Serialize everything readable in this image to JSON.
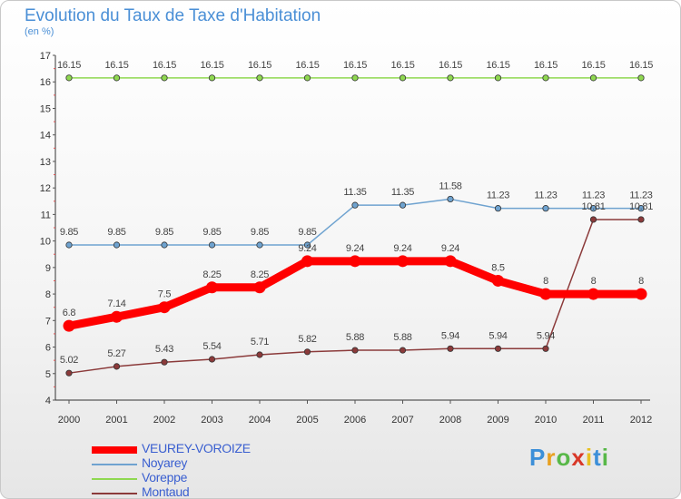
{
  "title": "Evolution du Taux de Taxe d'Habitation",
  "unit": "(en %)",
  "logo": {
    "text": "Proxiti",
    "letters": [
      "P",
      "r",
      "o",
      "x",
      "i",
      "t",
      "i"
    ]
  },
  "chart_data": {
    "type": "line",
    "categories": [
      "2000",
      "2001",
      "2002",
      "2003",
      "2004",
      "2005",
      "2006",
      "2007",
      "2008",
      "2009",
      "2010",
      "2011",
      "2012"
    ],
    "ylim": [
      4,
      17
    ],
    "yticks": [
      "4",
      "5",
      "6",
      "7",
      "8",
      "9",
      "10",
      "11",
      "12",
      "13",
      "14",
      "15",
      "16",
      "17"
    ],
    "grid": false,
    "legend_position": "bottom-left",
    "series": [
      {
        "name": "VEUREY-VOROIZE",
        "color": "#ff0000",
        "values": [
          6.8,
          7.14,
          7.5,
          8.25,
          8.25,
          9.24,
          9.24,
          9.24,
          9.24,
          8.5,
          8,
          8,
          8
        ],
        "labels": [
          "6.8",
          "7.14",
          "7.5",
          "8.25",
          "8.25",
          "9.24",
          "9.24",
          "9.24",
          "9.24",
          "8.5",
          "8",
          "8",
          "8"
        ]
      },
      {
        "name": "Noyarey",
        "color": "#6fa3d0",
        "values": [
          9.85,
          9.85,
          9.85,
          9.85,
          9.85,
          9.85,
          11.35,
          11.35,
          11.58,
          11.23,
          11.23,
          11.23,
          11.23
        ],
        "labels": [
          "9.85",
          "9.85",
          "9.85",
          "9.85",
          "9.85",
          "9.85",
          "11.35",
          "11.35",
          "11.58",
          "11.23",
          "11.23",
          "11.23",
          "11.23"
        ]
      },
      {
        "name": "Voreppe",
        "color": "#8fd850",
        "values": [
          16.15,
          16.15,
          16.15,
          16.15,
          16.15,
          16.15,
          16.15,
          16.15,
          16.15,
          16.15,
          16.15,
          16.15,
          16.15
        ],
        "labels": [
          "16.15",
          "16.15",
          "16.15",
          "16.15",
          "16.15",
          "16.15",
          "16.15",
          "16.15",
          "16.15",
          "16.15",
          "16.15",
          "16.15",
          "16.15"
        ]
      },
      {
        "name": "Montaud",
        "color": "#8b3a3a",
        "values": [
          5.02,
          5.27,
          5.43,
          5.54,
          5.71,
          5.82,
          5.88,
          5.88,
          5.94,
          5.94,
          5.94,
          10.81,
          10.81
        ],
        "labels": [
          "5.02",
          "5.27",
          "5.43",
          "5.54",
          "5.71",
          "5.82",
          "5.88",
          "5.88",
          "5.94",
          "5.94",
          "5.94",
          "10.81",
          "10.81"
        ]
      }
    ]
  }
}
